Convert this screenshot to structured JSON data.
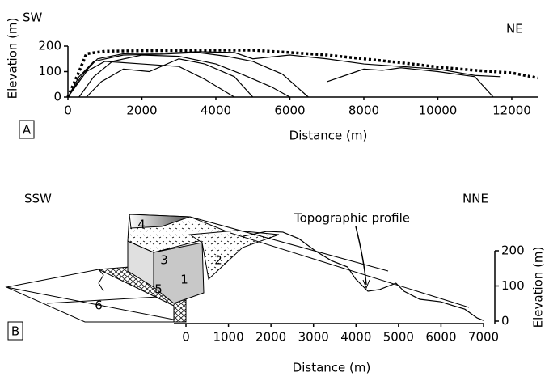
{
  "chart_data": [
    {
      "type": "line",
      "direction_left": "SW",
      "direction_right": "NE",
      "panel_label": "A",
      "xlabel": "Distance (m)",
      "ylabel": "Elevation (m)",
      "xlim": [
        0,
        12700
      ],
      "xticks": [
        0,
        2000,
        4000,
        6000,
        8000,
        10000,
        12000
      ],
      "ylim": [
        0,
        200
      ],
      "yticks": [
        0,
        100,
        200
      ],
      "series": [
        {
          "color": "#000000",
          "dotted": true,
          "x": [
            0,
            300,
            500,
            1000,
            2000,
            3000,
            4000,
            5000,
            6000,
            7000,
            8000,
            9000,
            10000,
            11000,
            12000,
            12700
          ],
          "values": [
            0,
            100,
            170,
            180,
            182,
            183,
            184,
            184,
            175,
            165,
            150,
            135,
            118,
            105,
            95,
            75
          ]
        },
        {
          "color": "#000000",
          "dotted": false,
          "x": [
            0,
            400,
            800,
            1500,
            2500,
            3500,
            4500,
            5000,
            6000,
            7000,
            8000,
            9000,
            10000,
            11000,
            11700
          ],
          "values": [
            0,
            90,
            150,
            170,
            172,
            178,
            175,
            150,
            165,
            150,
            130,
            120,
            110,
            85,
            80
          ]
        },
        {
          "color": "#000000",
          "dotted": false,
          "x": [
            0,
            300,
            700,
            1500,
            2500,
            3500,
            4300,
            5000,
            5800,
            6500
          ],
          "values": [
            0,
            80,
            140,
            165,
            168,
            175,
            160,
            140,
            90,
            0
          ]
        },
        {
          "color": "#000000",
          "dotted": false,
          "x": [
            300,
            700,
            1200,
            2000,
            3000,
            4000,
            4700,
            5500,
            6000
          ],
          "values": [
            0,
            80,
            140,
            165,
            160,
            130,
            90,
            40,
            0
          ]
        },
        {
          "color": "#000000",
          "dotted": false,
          "x": [
            500,
            900,
            1500,
            2200,
            3000,
            3700,
            4500,
            5000
          ],
          "values": [
            0,
            60,
            110,
            100,
            150,
            130,
            80,
            0
          ]
        },
        {
          "color": "#000000",
          "dotted": false,
          "x": [
            0,
            500,
            1000,
            2000,
            3000,
            3700,
            4500
          ],
          "values": [
            0,
            100,
            140,
            130,
            120,
            70,
            0
          ]
        },
        {
          "color": "#000000",
          "dotted": false,
          "x": [
            7000,
            7800,
            8000,
            8500,
            9000,
            10000,
            11000,
            11500
          ],
          "values": [
            60,
            100,
            110,
            105,
            115,
            100,
            80,
            0
          ]
        }
      ]
    },
    {
      "type": "line",
      "direction_left": "SSW",
      "direction_right": "NNE",
      "panel_label": "B",
      "xlabel": "Distance (m)",
      "ylabel": "Elevation (m)",
      "annotation": "Topographic profile",
      "block_labels": [
        "1",
        "2",
        "3",
        "4",
        "5",
        "6"
      ],
      "xlim": [
        0,
        7000
      ],
      "xticks": [
        0,
        1000,
        2000,
        3000,
        4000,
        5000,
        6000,
        7000
      ],
      "ylim": [
        0,
        200
      ],
      "yticks": [
        0,
        100,
        200
      ],
      "series": [
        {
          "color": "#000000",
          "dotted": false,
          "x": [
            1330,
            1900,
            2280,
            2660,
            3040,
            3420,
            3800,
            3990,
            4280,
            4560,
            4940,
            5130,
            5500,
            5990,
            6280,
            6560,
            6850,
            7000
          ],
          "values": [
            241,
            255,
            253,
            234,
            200,
            172,
            154,
            120,
            85,
            90,
            108,
            85,
            62,
            55,
            44,
            34,
            9,
            2
          ]
        }
      ]
    }
  ]
}
